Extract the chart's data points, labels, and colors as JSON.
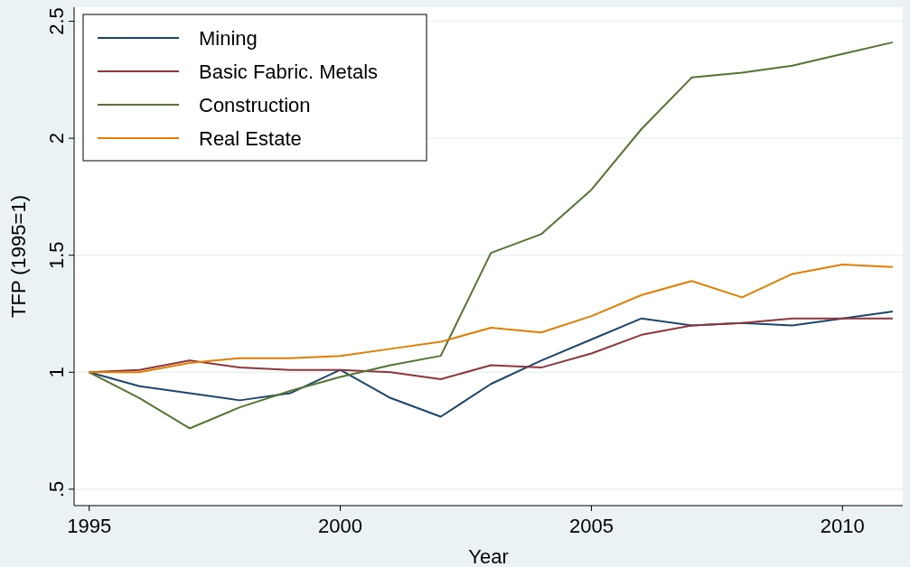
{
  "chart_data": {
    "type": "line",
    "xlabel": "Year",
    "ylabel": "TFP (1995=1)",
    "x": [
      1995,
      1996,
      1997,
      1998,
      1999,
      2000,
      2001,
      2002,
      2003,
      2004,
      2005,
      2006,
      2007,
      2008,
      2009,
      2010,
      2011
    ],
    "series": [
      {
        "name": "Mining",
        "color": "#1a476f",
        "values": [
          1.0,
          0.94,
          0.91,
          0.88,
          0.91,
          1.01,
          0.89,
          0.81,
          0.95,
          1.05,
          1.14,
          1.23,
          1.2,
          1.21,
          1.2,
          1.23,
          1.26
        ]
      },
      {
        "name": "Basic Fabric. Metals",
        "color": "#90353b",
        "values": [
          1.0,
          1.01,
          1.05,
          1.02,
          1.01,
          1.01,
          1.0,
          0.97,
          1.03,
          1.02,
          1.08,
          1.16,
          1.2,
          1.21,
          1.23,
          1.23,
          1.23
        ]
      },
      {
        "name": "Construction",
        "color": "#55752f",
        "values": [
          1.0,
          0.89,
          0.76,
          0.85,
          0.92,
          0.98,
          1.03,
          1.07,
          1.51,
          1.59,
          1.78,
          2.04,
          2.26,
          2.28,
          2.31,
          2.36,
          2.41
        ]
      },
      {
        "name": "Real Estate",
        "color": "#e37e00",
        "values": [
          1.0,
          1.0,
          1.04,
          1.06,
          1.06,
          1.07,
          1.1,
          1.13,
          1.19,
          1.17,
          1.24,
          1.33,
          1.39,
          1.32,
          1.42,
          1.46,
          1.45
        ]
      }
    ],
    "xlim": [
      1994.7,
      2011.2
    ],
    "ylim": [
      0.43,
      2.56
    ],
    "xticks": [
      1995,
      2000,
      2005,
      2010
    ],
    "yticks": [
      {
        "value": 0.5,
        "label": ".5"
      },
      1,
      1.5,
      2,
      2.5
    ],
    "grid": "y",
    "legend": "top left",
    "marker": "none",
    "line_style": "solid"
  }
}
